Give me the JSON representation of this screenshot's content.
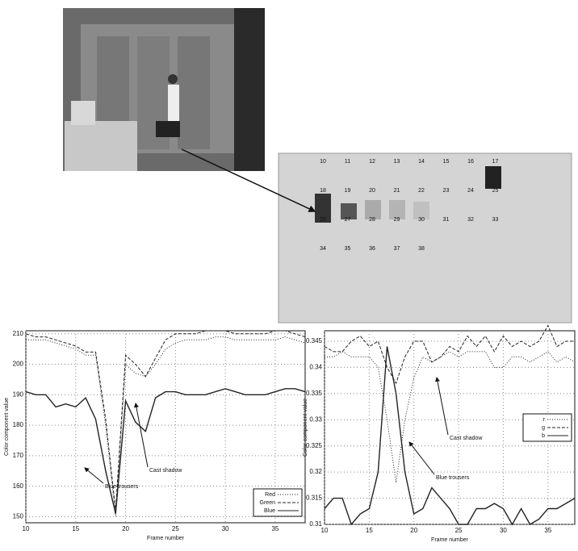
{
  "patch_labels": [
    "10",
    "11",
    "12",
    "13",
    "14",
    "15",
    "16",
    "17",
    "18",
    "19",
    "20",
    "21",
    "22",
    "23",
    "24",
    "25",
    "26",
    "27",
    "28",
    "29",
    "30",
    "31",
    "32",
    "33",
    "34",
    "35",
    "36",
    "37",
    "38"
  ],
  "chart_data": [
    {
      "type": "line",
      "xlabel": "Frame number",
      "ylabel": "Color component value",
      "x": [
        10,
        11,
        12,
        13,
        14,
        15,
        16,
        17,
        18,
        19,
        20,
        21,
        22,
        23,
        24,
        25,
        26,
        27,
        28,
        29,
        30,
        31,
        32,
        33,
        34,
        35,
        36,
        37,
        38
      ],
      "series": [
        {
          "name": "Red",
          "color": "#222",
          "style": "dotted",
          "values": [
            208,
            208,
            208,
            207,
            206,
            205,
            203,
            203,
            180,
            150,
            200,
            197,
            196,
            200,
            205,
            207,
            208,
            208,
            208,
            209,
            209,
            208,
            208,
            208,
            208,
            208,
            209,
            208,
            207
          ]
        },
        {
          "name": "Green",
          "color": "#222",
          "style": "dashed",
          "values": [
            210,
            209,
            209,
            208,
            207,
            206,
            204,
            204,
            182,
            152,
            203,
            200,
            196,
            202,
            208,
            210,
            210,
            210,
            211,
            211,
            211,
            210,
            210,
            210,
            210,
            211,
            211,
            210,
            209
          ]
        },
        {
          "name": "Blue",
          "color": "#222",
          "style": "solid",
          "values": [
            191,
            190,
            190,
            186,
            187,
            186,
            189,
            182,
            165,
            151,
            188,
            181,
            178,
            189,
            191,
            191,
            190,
            190,
            190,
            191,
            192,
            191,
            190,
            190,
            190,
            191,
            192,
            192,
            191
          ]
        }
      ],
      "xlim": [
        10,
        38
      ],
      "xticks": [
        10,
        15,
        20,
        25,
        30,
        35
      ],
      "ylim": [
        148,
        211
      ],
      "yticks": [
        150,
        160,
        170,
        180,
        190,
        200,
        210
      ],
      "grid": true,
      "legend": "lower right",
      "annotations": [
        "Cast shadow",
        "Blue trousers"
      ]
    },
    {
      "type": "line",
      "xlabel": "Frame number",
      "ylabel": "Color component value",
      "x": [
        10,
        11,
        12,
        13,
        14,
        15,
        16,
        17,
        18,
        19,
        20,
        21,
        22,
        23,
        24,
        25,
        26,
        27,
        28,
        29,
        30,
        31,
        32,
        33,
        34,
        35,
        36,
        37,
        38
      ],
      "series": [
        {
          "name": "r",
          "color": "#222",
          "style": "dotted",
          "values": [
            0.342,
            0.342,
            0.343,
            0.342,
            0.342,
            0.342,
            0.34,
            0.33,
            0.318,
            0.33,
            0.338,
            0.342,
            0.341,
            0.342,
            0.343,
            0.342,
            0.343,
            0.343,
            0.343,
            0.34,
            0.34,
            0.342,
            0.342,
            0.341,
            0.342,
            0.343,
            0.341,
            0.342,
            0.341
          ]
        },
        {
          "name": "g",
          "color": "#222",
          "style": "dashed",
          "values": [
            0.344,
            0.343,
            0.343,
            0.345,
            0.346,
            0.344,
            0.345,
            0.34,
            0.337,
            0.342,
            0.345,
            0.345,
            0.341,
            0.342,
            0.344,
            0.343,
            0.346,
            0.344,
            0.346,
            0.343,
            0.346,
            0.344,
            0.345,
            0.344,
            0.345,
            0.348,
            0.344,
            0.345,
            0.345
          ]
        },
        {
          "name": "b",
          "color": "#222",
          "style": "solid",
          "values": [
            0.313,
            0.315,
            0.315,
            0.31,
            0.312,
            0.313,
            0.32,
            0.344,
            0.335,
            0.32,
            0.312,
            0.313,
            0.317,
            0.315,
            0.313,
            0.31,
            0.31,
            0.313,
            0.313,
            0.314,
            0.313,
            0.31,
            0.313,
            0.31,
            0.311,
            0.313,
            0.313,
            0.314,
            0.315
          ]
        }
      ],
      "xlim": [
        10,
        38
      ],
      "xticks": [
        10,
        15,
        20,
        25,
        30,
        35
      ],
      "ylim": [
        0.31,
        0.347
      ],
      "yticks": [
        0.31,
        0.315,
        0.32,
        0.325,
        0.33,
        0.335,
        0.34,
        0.345
      ],
      "grid": true,
      "legend": "center right",
      "annotations": [
        "Cast shadow",
        "Blue trousers"
      ]
    }
  ]
}
